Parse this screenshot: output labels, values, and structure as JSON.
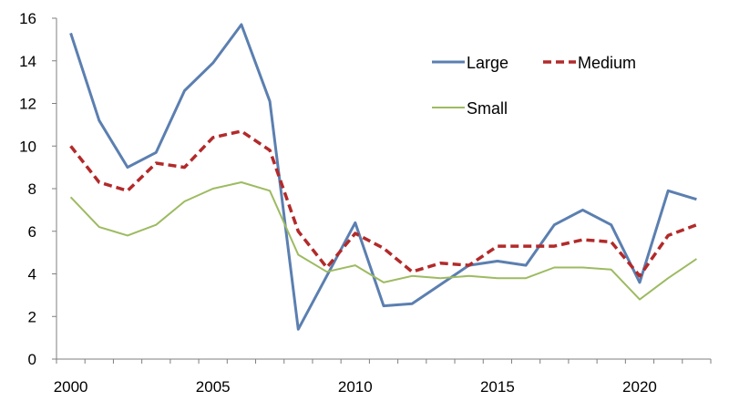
{
  "chart_data": {
    "type": "line",
    "title": "",
    "xlabel": "",
    "ylabel": "",
    "x": [
      2000,
      2001,
      2002,
      2003,
      2004,
      2005,
      2006,
      2007,
      2008,
      2009,
      2010,
      2011,
      2012,
      2013,
      2014,
      2015,
      2016,
      2017,
      2018,
      2019,
      2020,
      2021,
      2022
    ],
    "xticks": [
      2000,
      2005,
      2010,
      2015,
      2020
    ],
    "xtick_labels": [
      "2000",
      "2005",
      "2010",
      "2015",
      "2020"
    ],
    "ylim": [
      0,
      16
    ],
    "yticks": [
      0,
      2,
      4,
      6,
      8,
      10,
      12,
      14,
      16
    ],
    "ytick_labels": [
      "0",
      "2",
      "4",
      "6",
      "8",
      "10",
      "12",
      "14",
      "16"
    ],
    "grid": false,
    "legend_position": "top-right",
    "series": [
      {
        "name": "Large",
        "color": "#5b7fb0",
        "style": "solid",
        "values": [
          15.3,
          11.2,
          9.0,
          9.7,
          12.6,
          13.9,
          15.7,
          12.1,
          1.4,
          3.9,
          6.4,
          2.5,
          2.6,
          3.5,
          4.4,
          4.6,
          4.4,
          6.3,
          7.0,
          6.3,
          3.6,
          7.9,
          7.5
        ]
      },
      {
        "name": "Medium",
        "color": "#b22a2a",
        "style": "dashed",
        "values": [
          10.0,
          8.3,
          7.9,
          9.2,
          9.0,
          10.4,
          10.7,
          9.8,
          6.0,
          4.3,
          5.9,
          5.2,
          4.1,
          4.5,
          4.4,
          5.3,
          5.3,
          5.3,
          5.6,
          5.5,
          3.9,
          5.8,
          6.3
        ]
      },
      {
        "name": "Small",
        "color": "#9dbb61",
        "style": "solid",
        "values": [
          7.6,
          6.2,
          5.8,
          6.3,
          7.4,
          8.0,
          8.3,
          7.9,
          4.9,
          4.1,
          4.4,
          3.6,
          3.9,
          3.8,
          3.9,
          3.8,
          3.8,
          4.3,
          4.3,
          4.2,
          2.8,
          3.8,
          4.7
        ]
      }
    ]
  }
}
